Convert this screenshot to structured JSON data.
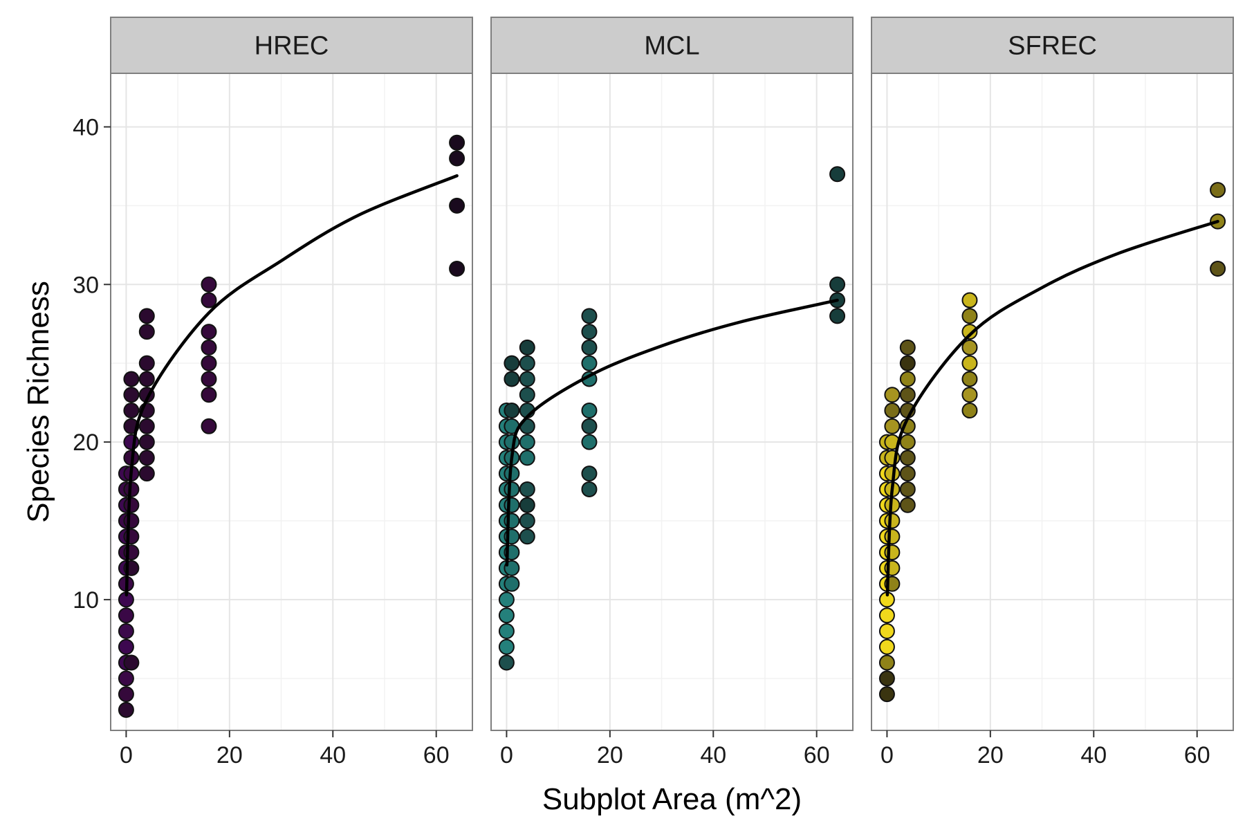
{
  "chart_data": {
    "type": "scatter",
    "xlabel": "Subplot Area (m^2)",
    "ylabel": "Species Richness",
    "xlim": [
      -3,
      67
    ],
    "ylim": [
      1.7,
      43.4
    ],
    "x_ticks": [
      0,
      20,
      40,
      60
    ],
    "y_ticks": [
      10,
      20,
      30,
      40
    ],
    "grid": true,
    "legend": "none",
    "panels": [
      {
        "name": "HREC",
        "fit": [
          [
            0.0625,
            10.3
          ],
          [
            1,
            18.2
          ],
          [
            4,
            22.7
          ],
          [
            16,
            28.2
          ],
          [
            30,
            31.5
          ],
          [
            45,
            34.4
          ],
          [
            64,
            36.9
          ]
        ],
        "points": [
          {
            "x": 0,
            "y": 3,
            "fill": "#2b0a2f"
          },
          {
            "x": 0,
            "y": 4,
            "fill": "#35093b"
          },
          {
            "x": 0,
            "y": 5,
            "fill": "#3a0846"
          },
          {
            "x": 0,
            "y": 6,
            "fill": "#3d0850"
          },
          {
            "x": 0,
            "y": 7,
            "fill": "#3d0850"
          },
          {
            "x": 0,
            "y": 8,
            "fill": "#3b0a4b"
          },
          {
            "x": 0,
            "y": 9,
            "fill": "#3a0846"
          },
          {
            "x": 0,
            "y": 10,
            "fill": "#3d0850"
          },
          {
            "x": 0,
            "y": 11,
            "fill": "#3a0846"
          },
          {
            "x": 0,
            "y": 12,
            "fill": "#3d0850"
          },
          {
            "x": 0,
            "y": 13,
            "fill": "#3a0846"
          },
          {
            "x": 0,
            "y": 14,
            "fill": "#3d0850"
          },
          {
            "x": 0,
            "y": 15,
            "fill": "#3a0846"
          },
          {
            "x": 0,
            "y": 16,
            "fill": "#3d0850"
          },
          {
            "x": 0,
            "y": 17,
            "fill": "#3a0846"
          },
          {
            "x": 0,
            "y": 18,
            "fill": "#3d0850"
          },
          {
            "x": 1,
            "y": 6,
            "fill": "#2b0a2f"
          },
          {
            "x": 1,
            "y": 12,
            "fill": "#2b0a2f"
          },
          {
            "x": 1,
            "y": 13,
            "fill": "#35093b"
          },
          {
            "x": 1,
            "y": 14,
            "fill": "#35093b"
          },
          {
            "x": 1,
            "y": 15,
            "fill": "#35093b"
          },
          {
            "x": 1,
            "y": 16,
            "fill": "#35093b"
          },
          {
            "x": 1,
            "y": 17,
            "fill": "#35093b"
          },
          {
            "x": 1,
            "y": 18,
            "fill": "#3a0846"
          },
          {
            "x": 1,
            "y": 19,
            "fill": "#35093b"
          },
          {
            "x": 1,
            "y": 20,
            "fill": "#3d0850"
          },
          {
            "x": 1,
            "y": 21,
            "fill": "#2b0a2f"
          },
          {
            "x": 1,
            "y": 22,
            "fill": "#2b0a2f"
          },
          {
            "x": 1,
            "y": 23,
            "fill": "#2b0a2f"
          },
          {
            "x": 1,
            "y": 24,
            "fill": "#2b0a2f"
          },
          {
            "x": 4,
            "y": 18,
            "fill": "#2b0a2f"
          },
          {
            "x": 4,
            "y": 19,
            "fill": "#2b0a2f"
          },
          {
            "x": 4,
            "y": 20,
            "fill": "#2b0a2f"
          },
          {
            "x": 4,
            "y": 21,
            "fill": "#2b0a2f"
          },
          {
            "x": 4,
            "y": 22,
            "fill": "#2b0a2f"
          },
          {
            "x": 4,
            "y": 23,
            "fill": "#2b0a2f"
          },
          {
            "x": 4,
            "y": 24,
            "fill": "#2b0a2f"
          },
          {
            "x": 4,
            "y": 25,
            "fill": "#2b0a2f"
          },
          {
            "x": 4,
            "y": 27,
            "fill": "#2b0a2f"
          },
          {
            "x": 4,
            "y": 28,
            "fill": "#2b0a2f"
          },
          {
            "x": 16,
            "y": 21,
            "fill": "#35093b"
          },
          {
            "x": 16,
            "y": 23,
            "fill": "#35093b"
          },
          {
            "x": 16,
            "y": 24,
            "fill": "#35093b"
          },
          {
            "x": 16,
            "y": 25,
            "fill": "#35093b"
          },
          {
            "x": 16,
            "y": 26,
            "fill": "#35093b"
          },
          {
            "x": 16,
            "y": 27,
            "fill": "#35093b"
          },
          {
            "x": 16,
            "y": 29,
            "fill": "#35093b"
          },
          {
            "x": 16,
            "y": 30,
            "fill": "#35093b"
          },
          {
            "x": 64,
            "y": 31,
            "fill": "#1a0a1e"
          },
          {
            "x": 64,
            "y": 35,
            "fill": "#1a0a1e"
          },
          {
            "x": 64,
            "y": 38,
            "fill": "#1a0a1e"
          },
          {
            "x": 64,
            "y": 39,
            "fill": "#1a0a1e"
          }
        ]
      },
      {
        "name": "MCL",
        "fit": [
          [
            0.0625,
            12.2
          ],
          [
            1,
            19.0
          ],
          [
            4,
            21.6
          ],
          [
            16,
            24.2
          ],
          [
            30,
            26.1
          ],
          [
            45,
            27.6
          ],
          [
            64,
            29.0
          ]
        ],
        "points": [
          {
            "x": 0,
            "y": 6,
            "fill": "#1d4f4d"
          },
          {
            "x": 0,
            "y": 7,
            "fill": "#24807b"
          },
          {
            "x": 0,
            "y": 8,
            "fill": "#24807b"
          },
          {
            "x": 0,
            "y": 9,
            "fill": "#24807b"
          },
          {
            "x": 0,
            "y": 10,
            "fill": "#24807b"
          },
          {
            "x": 0,
            "y": 11,
            "fill": "#24807b"
          },
          {
            "x": 0,
            "y": 12,
            "fill": "#24807b"
          },
          {
            "x": 0,
            "y": 13,
            "fill": "#24807b"
          },
          {
            "x": 0,
            "y": 14,
            "fill": "#24807b"
          },
          {
            "x": 0,
            "y": 15,
            "fill": "#24807b"
          },
          {
            "x": 0,
            "y": 16,
            "fill": "#24807b"
          },
          {
            "x": 0,
            "y": 17,
            "fill": "#24807b"
          },
          {
            "x": 0,
            "y": 18,
            "fill": "#24807b"
          },
          {
            "x": 0,
            "y": 19,
            "fill": "#24807b"
          },
          {
            "x": 0,
            "y": 20,
            "fill": "#24807b"
          },
          {
            "x": 0,
            "y": 21,
            "fill": "#24807b"
          },
          {
            "x": 0,
            "y": 22,
            "fill": "#24807b"
          },
          {
            "x": 1,
            "y": 11,
            "fill": "#1f6f6b"
          },
          {
            "x": 1,
            "y": 12,
            "fill": "#1f6f6b"
          },
          {
            "x": 1,
            "y": 13,
            "fill": "#1f6f6b"
          },
          {
            "x": 1,
            "y": 14,
            "fill": "#1f6f6b"
          },
          {
            "x": 1,
            "y": 15,
            "fill": "#1f6f6b"
          },
          {
            "x": 1,
            "y": 16,
            "fill": "#1f6f6b"
          },
          {
            "x": 1,
            "y": 17,
            "fill": "#1f6f6b"
          },
          {
            "x": 1,
            "y": 18,
            "fill": "#1f6f6b"
          },
          {
            "x": 1,
            "y": 19,
            "fill": "#1f6f6b"
          },
          {
            "x": 1,
            "y": 20,
            "fill": "#1f6f6b"
          },
          {
            "x": 1,
            "y": 21,
            "fill": "#1f6f6b"
          },
          {
            "x": 1,
            "y": 22,
            "fill": "#173d3b"
          },
          {
            "x": 1,
            "y": 24,
            "fill": "#173d3b"
          },
          {
            "x": 1,
            "y": 25,
            "fill": "#173d3b"
          },
          {
            "x": 4,
            "y": 14,
            "fill": "#1d4f4d"
          },
          {
            "x": 4,
            "y": 15,
            "fill": "#1d4f4d"
          },
          {
            "x": 4,
            "y": 16,
            "fill": "#173d3b"
          },
          {
            "x": 4,
            "y": 17,
            "fill": "#1d4f4d"
          },
          {
            "x": 4,
            "y": 19,
            "fill": "#1f6f6b"
          },
          {
            "x": 4,
            "y": 20,
            "fill": "#1f6f6b"
          },
          {
            "x": 4,
            "y": 21,
            "fill": "#1d4f4d"
          },
          {
            "x": 4,
            "y": 22,
            "fill": "#1d4f4d"
          },
          {
            "x": 4,
            "y": 23,
            "fill": "#1d4f4d"
          },
          {
            "x": 4,
            "y": 24,
            "fill": "#1d4f4d"
          },
          {
            "x": 4,
            "y": 25,
            "fill": "#1d4f4d"
          },
          {
            "x": 4,
            "y": 26,
            "fill": "#173d3b"
          },
          {
            "x": 16,
            "y": 17,
            "fill": "#1d4f4d"
          },
          {
            "x": 16,
            "y": 18,
            "fill": "#1d4f4d"
          },
          {
            "x": 16,
            "y": 20,
            "fill": "#1f6f6b"
          },
          {
            "x": 16,
            "y": 21,
            "fill": "#1d4f4d"
          },
          {
            "x": 16,
            "y": 22,
            "fill": "#1f6f6b"
          },
          {
            "x": 16,
            "y": 24,
            "fill": "#1f6f6b"
          },
          {
            "x": 16,
            "y": 25,
            "fill": "#1f6f6b"
          },
          {
            "x": 16,
            "y": 26,
            "fill": "#1d4f4d"
          },
          {
            "x": 16,
            "y": 27,
            "fill": "#1d4f4d"
          },
          {
            "x": 16,
            "y": 28,
            "fill": "#1d4f4d"
          },
          {
            "x": 64,
            "y": 28,
            "fill": "#173d3b"
          },
          {
            "x": 64,
            "y": 29,
            "fill": "#173d3b"
          },
          {
            "x": 64,
            "y": 30,
            "fill": "#173d3b"
          },
          {
            "x": 64,
            "y": 37,
            "fill": "#173d3b"
          }
        ]
      },
      {
        "name": "SFREC",
        "fit": [
          [
            0.0625,
            10.3
          ],
          [
            1,
            17.0
          ],
          [
            4,
            21.5
          ],
          [
            16,
            26.8
          ],
          [
            30,
            29.8
          ],
          [
            45,
            32.0
          ],
          [
            64,
            34.0
          ]
        ],
        "points": [
          {
            "x": 0,
            "y": 4,
            "fill": "#3a3410"
          },
          {
            "x": 0,
            "y": 5,
            "fill": "#3a3410"
          },
          {
            "x": 0,
            "y": 6,
            "fill": "#8f8218"
          },
          {
            "x": 0,
            "y": 7,
            "fill": "#f0d81c"
          },
          {
            "x": 0,
            "y": 8,
            "fill": "#f0d81c"
          },
          {
            "x": 0,
            "y": 9,
            "fill": "#f0d81c"
          },
          {
            "x": 0,
            "y": 10,
            "fill": "#f0d81c"
          },
          {
            "x": 0,
            "y": 11,
            "fill": "#f0d81c"
          },
          {
            "x": 0,
            "y": 12,
            "fill": "#f0d81c"
          },
          {
            "x": 0,
            "y": 13,
            "fill": "#f0d81c"
          },
          {
            "x": 0,
            "y": 14,
            "fill": "#f0d81c"
          },
          {
            "x": 0,
            "y": 15,
            "fill": "#f0d81c"
          },
          {
            "x": 0,
            "y": 16,
            "fill": "#f0d81c"
          },
          {
            "x": 0,
            "y": 17,
            "fill": "#f0d81c"
          },
          {
            "x": 0,
            "y": 18,
            "fill": "#f0d81c"
          },
          {
            "x": 0,
            "y": 19,
            "fill": "#c9b51c"
          },
          {
            "x": 0,
            "y": 20,
            "fill": "#c9b51c"
          },
          {
            "x": 1,
            "y": 11,
            "fill": "#8f8218"
          },
          {
            "x": 1,
            "y": 12,
            "fill": "#c9b51c"
          },
          {
            "x": 1,
            "y": 13,
            "fill": "#c9b51c"
          },
          {
            "x": 1,
            "y": 14,
            "fill": "#c9b51c"
          },
          {
            "x": 1,
            "y": 15,
            "fill": "#c9b51c"
          },
          {
            "x": 1,
            "y": 16,
            "fill": "#c9b51c"
          },
          {
            "x": 1,
            "y": 17,
            "fill": "#c9b51c"
          },
          {
            "x": 1,
            "y": 18,
            "fill": "#c9b51c"
          },
          {
            "x": 1,
            "y": 19,
            "fill": "#c9b51c"
          },
          {
            "x": 1,
            "y": 20,
            "fill": "#c9b51c"
          },
          {
            "x": 1,
            "y": 21,
            "fill": "#a69420"
          },
          {
            "x": 1,
            "y": 22,
            "fill": "#7a6d18"
          },
          {
            "x": 1,
            "y": 23,
            "fill": "#a69420"
          },
          {
            "x": 4,
            "y": 16,
            "fill": "#5e5418"
          },
          {
            "x": 4,
            "y": 17,
            "fill": "#5e5418"
          },
          {
            "x": 4,
            "y": 18,
            "fill": "#5e5418"
          },
          {
            "x": 4,
            "y": 19,
            "fill": "#5e5418"
          },
          {
            "x": 4,
            "y": 20,
            "fill": "#8f8218"
          },
          {
            "x": 4,
            "y": 21,
            "fill": "#8f8218"
          },
          {
            "x": 4,
            "y": 22,
            "fill": "#5e5418"
          },
          {
            "x": 4,
            "y": 23,
            "fill": "#5e5418"
          },
          {
            "x": 4,
            "y": 24,
            "fill": "#8f8218"
          },
          {
            "x": 4,
            "y": 25,
            "fill": "#3a3410"
          },
          {
            "x": 4,
            "y": 26,
            "fill": "#5e5418"
          },
          {
            "x": 16,
            "y": 22,
            "fill": "#8f8218"
          },
          {
            "x": 16,
            "y": 23,
            "fill": "#a69420"
          },
          {
            "x": 16,
            "y": 24,
            "fill": "#8f8218"
          },
          {
            "x": 16,
            "y": 25,
            "fill": "#c9b51c"
          },
          {
            "x": 16,
            "y": 26,
            "fill": "#a69420"
          },
          {
            "x": 16,
            "y": 27,
            "fill": "#c9b51c"
          },
          {
            "x": 16,
            "y": 28,
            "fill": "#8f8218"
          },
          {
            "x": 16,
            "y": 29,
            "fill": "#c9b51c"
          },
          {
            "x": 64,
            "y": 31,
            "fill": "#5e5418"
          },
          {
            "x": 64,
            "y": 34,
            "fill": "#8f8218"
          },
          {
            "x": 64,
            "y": 36,
            "fill": "#7a6d18"
          }
        ]
      }
    ]
  }
}
